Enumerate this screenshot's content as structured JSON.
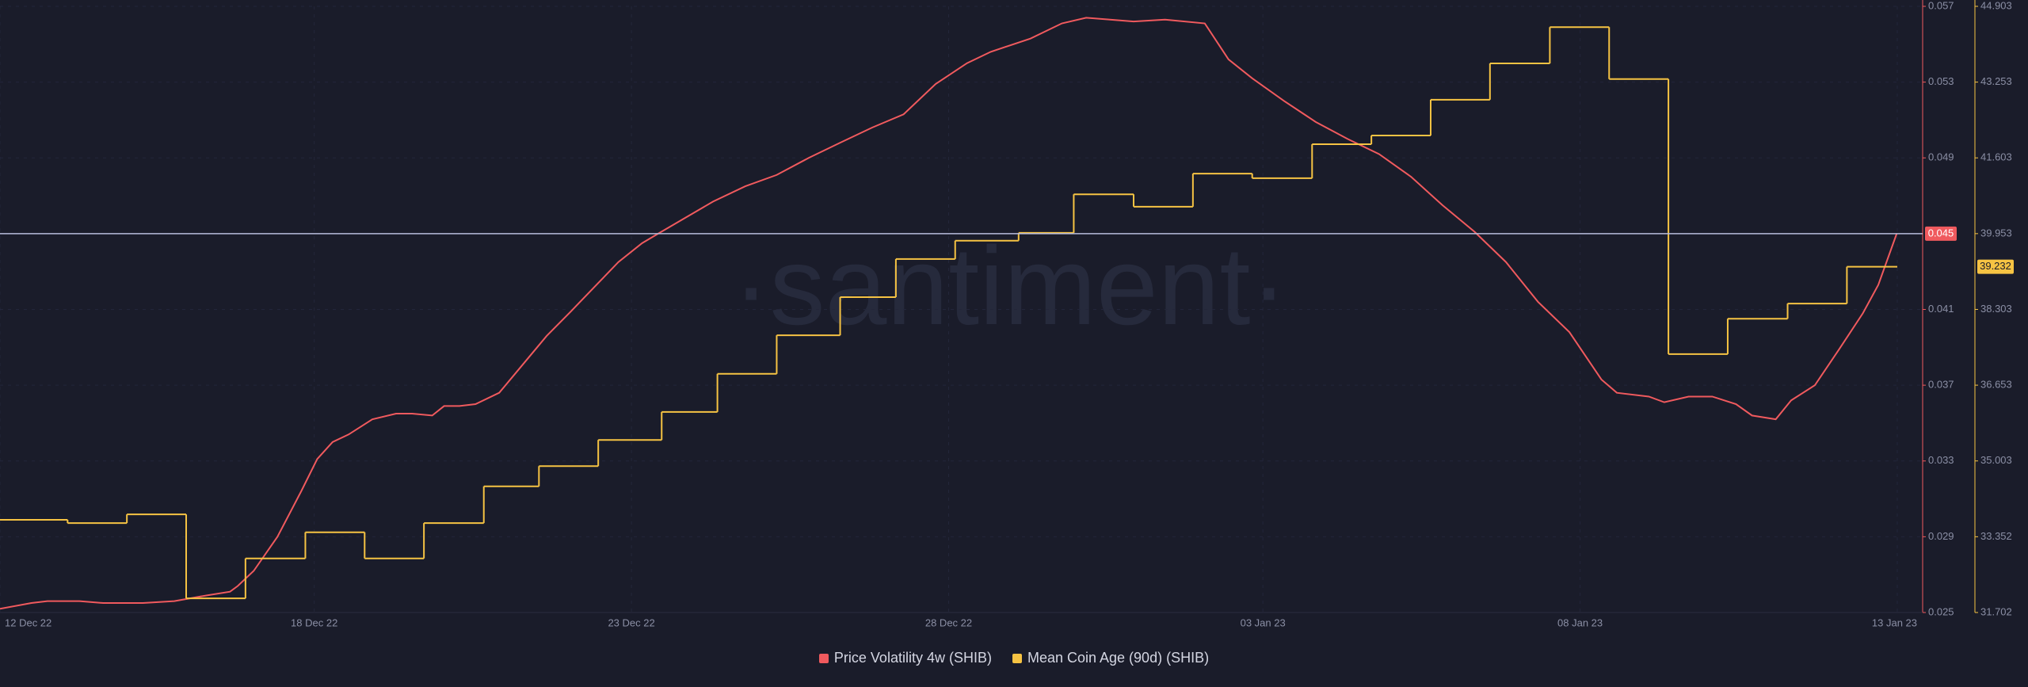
{
  "chart_data": {
    "type": "line",
    "watermark": "·santiment·",
    "xlim": [
      0,
      32
    ],
    "xticks": [
      {
        "value": 0,
        "label": "12 Dec 22"
      },
      {
        "value": 5.3,
        "label": "18 Dec 22"
      },
      {
        "value": 10.65,
        "label": "23 Dec 22"
      },
      {
        "value": 16,
        "label": "28 Dec 22"
      },
      {
        "value": 21.3,
        "label": "03 Jan 23"
      },
      {
        "value": 26.65,
        "label": "08 Jan 23"
      },
      {
        "value": 32,
        "label": "13 Jan 23"
      }
    ],
    "ylim": [
      0.025,
      0.057
    ],
    "yticks": [
      0.025,
      0.029,
      0.033,
      0.037,
      0.041,
      0.049,
      0.053,
      0.057
    ],
    "y2lim": [
      31.702,
      44.903
    ],
    "y2ticks": [
      31.702,
      33.352,
      35.003,
      36.653,
      38.303,
      39.953,
      41.603,
      43.253,
      44.903
    ],
    "grid": true,
    "series": [
      {
        "name": "Price Volatility 4w (SHIB)",
        "color": "#f05a5e",
        "step": false,
        "x": [
          0,
          0.53,
          0.8,
          1.34,
          1.74,
          2.41,
          2.94,
          3.48,
          3.88,
          4.01,
          4.28,
          4.68,
          5.08,
          5.35,
          5.61,
          5.88,
          6.28,
          6.68,
          6.95,
          7.29,
          7.49,
          7.75,
          8.02,
          8.42,
          8.82,
          9.22,
          9.63,
          10.03,
          10.43,
          10.83,
          11.1,
          12.03,
          12.57,
          13.1,
          13.64,
          14.17,
          14.71,
          15.24,
          15.78,
          16.31,
          16.71,
          17.38,
          17.91,
          18.32,
          18.72,
          19.12,
          19.65,
          20.32,
          20.72,
          21.12,
          21.66,
          22.19,
          22.73,
          23.26,
          23.8,
          24.33,
          24.87,
          25.4,
          25.94,
          26.47,
          27.01,
          27.27,
          27.81,
          28.07,
          28.48,
          28.88,
          29.28,
          29.55,
          29.95,
          30.21,
          30.61,
          31.02,
          31.42,
          31.68,
          31.99
        ],
        "values": [
          0.0252,
          0.0255,
          0.0256,
          0.0256,
          0.0255,
          0.0255,
          0.0256,
          0.0259,
          0.0261,
          0.0264,
          0.0272,
          0.029,
          0.0314,
          0.0331,
          0.034,
          0.0344,
          0.0352,
          0.0355,
          0.0355,
          0.0354,
          0.0359,
          0.0359,
          0.036,
          0.0366,
          0.0381,
          0.0396,
          0.0409,
          0.0422,
          0.0435,
          0.0445,
          0.045,
          0.0467,
          0.0475,
          0.0481,
          0.049,
          0.0498,
          0.0506,
          0.0513,
          0.0529,
          0.054,
          0.0546,
          0.0553,
          0.0561,
          0.0564,
          0.0563,
          0.0562,
          0.0563,
          0.0561,
          0.0542,
          0.0532,
          0.052,
          0.0509,
          0.05,
          0.0492,
          0.048,
          0.0465,
          0.0451,
          0.0435,
          0.0414,
          0.0398,
          0.0373,
          0.0366,
          0.0364,
          0.0361,
          0.0364,
          0.0364,
          0.036,
          0.0354,
          0.0352,
          0.0362,
          0.037,
          0.0389,
          0.0408,
          0.0423,
          0.045
        ]
      },
      {
        "name": "Mean Coin Age (90d) (SHIB)",
        "color": "#f6c343",
        "axis": "y2",
        "step": true,
        "x": [
          0,
          1.14,
          2.14,
          3.14,
          4.14,
          5.15,
          6.15,
          7.15,
          8.16,
          9.09,
          10.09,
          11.16,
          12.1,
          13.1,
          14.17,
          15.11,
          16.11,
          17.18,
          18.11,
          19.12,
          20.12,
          21.12,
          22.13,
          23.13,
          24.13,
          25.13,
          26.14,
          27.14,
          28.14,
          29.14,
          30.15,
          31.15
        ],
        "values": [
          33.72,
          33.65,
          33.84,
          32.01,
          32.88,
          33.45,
          32.88,
          33.65,
          34.45,
          34.89,
          35.46,
          36.07,
          36.9,
          37.74,
          38.57,
          39.4,
          39.8,
          39.97,
          40.81,
          40.54,
          41.26,
          41.16,
          41.9,
          42.09,
          42.87,
          43.66,
          44.45,
          43.32,
          37.33,
          38.1,
          38.43,
          39.232
        ]
      }
    ]
  }
}
